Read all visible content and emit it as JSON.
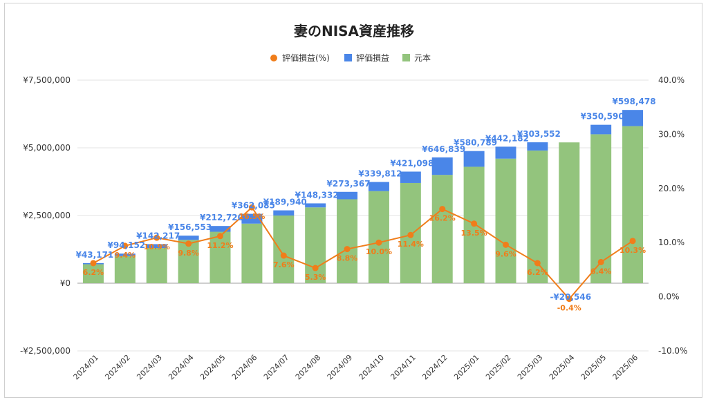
{
  "chart_data": {
    "type": "bar",
    "title": "妻のNISA資産推移",
    "legend_position": "top",
    "grid": true,
    "categories": [
      "2024/01",
      "2024/02",
      "2024/03",
      "2024/04",
      "2024/05",
      "2024/06",
      "2024/07",
      "2024/08",
      "2024/09",
      "2024/10",
      "2024/11",
      "2024/12",
      "2025/01",
      "2025/02",
      "2025/03",
      "2025/04",
      "2025/05",
      "2025/06"
    ],
    "y_left": {
      "min": -2500000,
      "max": 7500000,
      "ticks": [
        -2500000,
        0,
        2500000,
        5000000,
        7500000
      ],
      "tick_labels": [
        "-¥2,500,000",
        "¥0",
        "¥2,500,000",
        "¥5,000,000",
        "¥7,500,000"
      ]
    },
    "y_right": {
      "min": -10,
      "max": 40,
      "ticks": [
        -10,
        0,
        10,
        20,
        30,
        40
      ],
      "tick_labels": [
        "-10.0%",
        "0.0%",
        "10.0%",
        "20.0%",
        "30.0%",
        "40.0%"
      ]
    },
    "series": [
      {
        "name": "評価損益(%)",
        "type": "line",
        "axis": "right",
        "color": "#f07d1a",
        "values": [
          6.2,
          9.4,
          10.9,
          9.8,
          11.2,
          16.5,
          7.6,
          5.3,
          8.8,
          10.0,
          11.4,
          16.2,
          13.5,
          9.6,
          6.2,
          -0.4,
          6.4,
          10.3
        ],
        "labels": [
          "6.2%",
          "9.4%",
          "10.9%",
          "9.8%",
          "11.2%",
          "16.5%",
          "7.6%",
          "5.3%",
          "8.8%",
          "10.0%",
          "11.4%",
          "16.2%",
          "13.5%",
          "9.6%",
          "6.2%",
          "-0.4%",
          "6.4%",
          "10.3%"
        ]
      },
      {
        "name": "評価損益",
        "type": "bar-stacked",
        "axis": "left",
        "color": "#4a86e8",
        "values": [
          43171,
          94152,
          142217,
          156553,
          212720,
          362085,
          189940,
          148332,
          273367,
          339812,
          421098,
          646839,
          580789,
          442182,
          303552,
          -20546,
          350590,
          598478
        ],
        "labels": [
          "¥43,171",
          "¥94,152",
          "¥142,217",
          "¥156,553",
          "¥212,720",
          "¥362,085",
          "¥189,940",
          "¥148,332",
          "¥273,367",
          "¥339,812",
          "¥421,098",
          "¥646,839",
          "¥580,789",
          "¥442,182",
          "¥303,552",
          "-¥20,546",
          "¥350,590",
          "¥598,478"
        ]
      },
      {
        "name": "元本",
        "type": "bar-stacked",
        "axis": "left",
        "color": "#93c47d",
        "values": [
          700000,
          1000000,
          1300000,
          1600000,
          1900000,
          2200000,
          2500000,
          2800000,
          3100000,
          3400000,
          3700000,
          4000000,
          4300000,
          4600000,
          4900000,
          5200000,
          5500000,
          5800000
        ]
      }
    ]
  }
}
